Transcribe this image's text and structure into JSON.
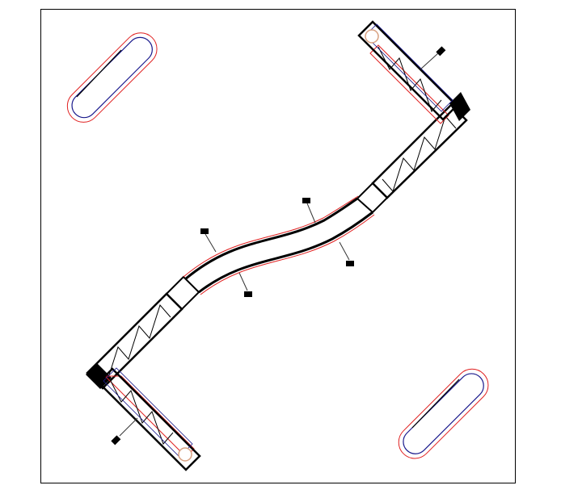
{
  "drawing": {
    "colors": {
      "structure": "#000000",
      "outline_red": "#e02020",
      "outline_blue": "#1a1a8c",
      "caster": "#d8a080",
      "hanger": "#333333"
    }
  }
}
